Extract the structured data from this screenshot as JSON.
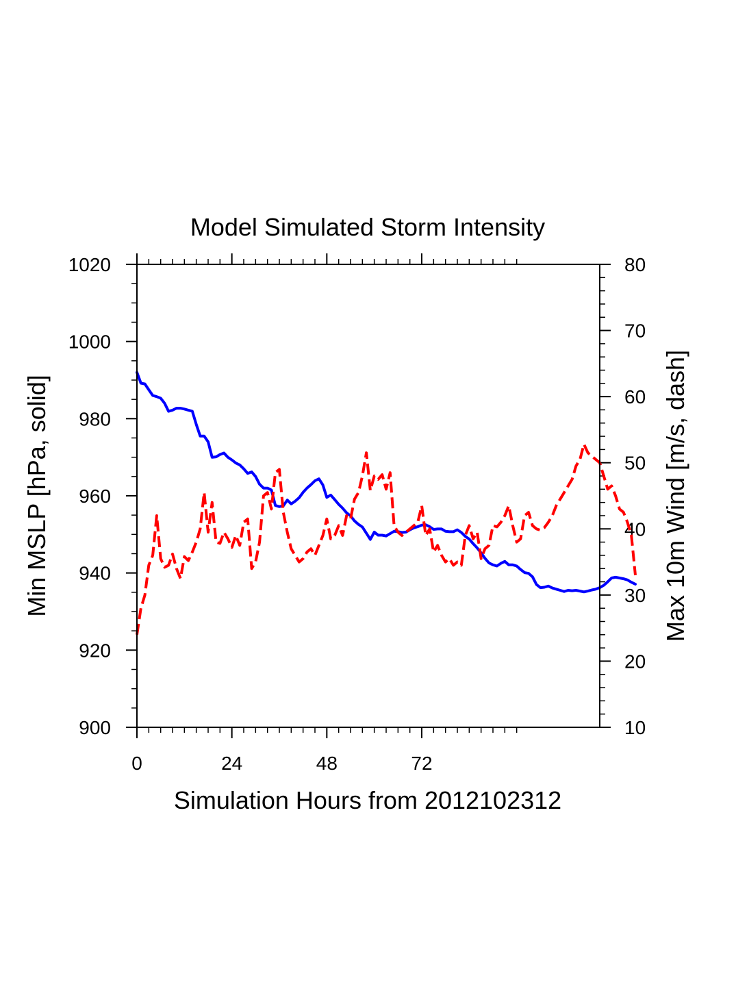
{
  "chart_data": {
    "type": "line",
    "title": "Model Simulated Storm Intensity",
    "xlabel": "Simulation Hours from 2012102312",
    "ylabel_left": "Min MSLP  [hPa, solid]",
    "ylabel_right": "Max 10m Wind  [m/s, dash]",
    "xlim": [
      0,
      117
    ],
    "ylim_left": [
      900,
      1020
    ],
    "ylim_right": [
      10,
      80
    ],
    "x_ticks": [
      0,
      24,
      48,
      72
    ],
    "x_tick_labels": [
      "0",
      "24",
      "48",
      "72"
    ],
    "y_left_ticks": [
      900,
      920,
      940,
      960,
      980,
      1000,
      1020
    ],
    "y_left_tick_labels": [
      "900",
      "920",
      "940",
      "960",
      "980",
      "1000",
      "1020"
    ],
    "y_right_ticks": [
      10,
      20,
      30,
      40,
      50,
      60,
      70,
      80
    ],
    "y_right_tick_labels": [
      "10",
      "20",
      "30",
      "40",
      "50",
      "60",
      "70",
      "80"
    ],
    "series": [
      {
        "name": "Min MSLP",
        "axis": "left",
        "color": "#0000ff",
        "style": "solid",
        "x": [
          0,
          1,
          2,
          3,
          4,
          5,
          6,
          7,
          8,
          9,
          10,
          11,
          12,
          13,
          14,
          15,
          16,
          17,
          18,
          19,
          20,
          21,
          22,
          23,
          24,
          25,
          26,
          27,
          28,
          29,
          30,
          31,
          32,
          33,
          34,
          35,
          36,
          37,
          38,
          39,
          40,
          41,
          42,
          43,
          44,
          45,
          46,
          47,
          48,
          49,
          50,
          51,
          52,
          53,
          54,
          55,
          56,
          57,
          58,
          59,
          60,
          61,
          62,
          63,
          64,
          65,
          66,
          67,
          68,
          69,
          70,
          71,
          72,
          73,
          74,
          75,
          76,
          77,
          78,
          79,
          80,
          81,
          82,
          83,
          84,
          85,
          86,
          87,
          88,
          89,
          90,
          91,
          92,
          93,
          94,
          95,
          96,
          97,
          98,
          99,
          100,
          101,
          102,
          103,
          104,
          105,
          106,
          107,
          108,
          109,
          110,
          111,
          112,
          113,
          114,
          115,
          116,
          117,
          118,
          119,
          120,
          121,
          122,
          123,
          124,
          125,
          126
        ],
        "values": [
          992.0,
          989.2,
          989.0,
          987.5,
          986.0,
          985.7,
          985.3,
          984.0,
          981.9,
          982.2,
          982.7,
          982.7,
          982.5,
          982.2,
          981.9,
          978.5,
          975.5,
          975.5,
          974.0,
          970.0,
          970.1,
          970.7,
          971.1,
          970.0,
          969.3,
          968.5,
          968.0,
          967.0,
          965.8,
          966.2,
          965.0,
          963.0,
          962.0,
          962.0,
          961.5,
          957.5,
          957.2,
          957.4,
          958.9,
          957.9,
          958.6,
          959.5,
          960.9,
          962.0,
          962.9,
          963.9,
          964.4,
          962.8,
          959.6,
          960.2,
          959.0,
          957.8,
          956.8,
          955.6,
          954.8,
          953.5,
          952.6,
          951.9,
          950.3,
          948.7,
          950.6,
          949.8,
          949.8,
          949.6,
          950.2,
          950.8,
          950.7,
          950.5,
          950.6,
          951.2,
          951.7,
          952.0,
          952.4,
          952.5,
          952.0,
          951.3,
          951.4,
          951.4,
          950.8,
          950.7,
          950.7,
          951.2,
          950.5,
          949.5,
          948.8,
          947.6,
          946.5,
          945.2,
          943.8,
          942.6,
          942.1,
          941.8,
          942.5,
          943.0,
          942.1,
          942.1,
          941.8,
          940.9,
          940.1,
          939.9,
          939.0,
          937.0,
          936.2,
          936.3,
          936.6,
          936.1,
          935.8,
          935.5,
          935.2,
          935.5,
          935.4,
          935.5,
          935.3,
          935.1,
          935.3,
          935.6,
          935.8,
          936.2,
          936.8,
          937.7,
          938.7,
          938.9,
          938.7,
          938.5,
          938.2,
          937.6,
          937.1
        ]
      },
      {
        "name": "Max 10m Wind",
        "axis": "right",
        "color": "#ff0000",
        "style": "dashed",
        "x": [
          0,
          1,
          2,
          3,
          4,
          5,
          6,
          7,
          8,
          9,
          10,
          11,
          12,
          13,
          14,
          15,
          16,
          17,
          18,
          19,
          20,
          21,
          22,
          23,
          24,
          25,
          26,
          27,
          28,
          29,
          30,
          31,
          32,
          33,
          34,
          35,
          36,
          37,
          38,
          39,
          40,
          41,
          42,
          43,
          44,
          45,
          46,
          47,
          48,
          49,
          50,
          51,
          52,
          53,
          54,
          55,
          56,
          57,
          58,
          59,
          60,
          61,
          62,
          63,
          64,
          65,
          66,
          67,
          68,
          69,
          70,
          71,
          72,
          73,
          74,
          75,
          76,
          77,
          78,
          79,
          80,
          81,
          82,
          83,
          84,
          85,
          86,
          87,
          88,
          89,
          90,
          91,
          92,
          93,
          94,
          95,
          96,
          97,
          98,
          99,
          100,
          101,
          102,
          103,
          104,
          105,
          106,
          107,
          108,
          109,
          110,
          111,
          112,
          113,
          114,
          115,
          116,
          117,
          118,
          119,
          120,
          121,
          122,
          123,
          124,
          125,
          126
        ],
        "values": [
          24.0,
          28.0,
          30.0,
          34.5,
          36.0,
          42.0,
          35.5,
          34.2,
          34.5,
          36.2,
          34.0,
          32.5,
          35.8,
          35.2,
          36.5,
          38.0,
          40.0,
          45.5,
          39.5,
          44.0,
          38.0,
          37.8,
          39.5,
          38.5,
          37.2,
          39.0,
          37.5,
          41.0,
          41.5,
          34.0,
          35.0,
          38.0,
          45.0,
          45.5,
          43.0,
          48.5,
          49.0,
          42.5,
          39.5,
          37.0,
          36.0,
          35.0,
          35.5,
          36.5,
          37.0,
          36.0,
          37.5,
          39.0,
          41.5,
          38.5,
          39.0,
          40.5,
          39.0,
          42.0,
          41.5,
          44.5,
          45.5,
          48.0,
          51.5,
          45.8,
          48.0,
          47.5,
          48.2,
          46.0,
          48.5,
          40.5,
          39.5,
          39.0,
          39.5,
          40.0,
          40.5,
          41.0,
          43.5,
          39.0,
          40.0,
          36.5,
          37.5,
          36.0,
          35.0,
          35.5,
          34.5,
          35.0,
          34.5,
          39.0,
          40.5,
          38.5,
          39.5,
          35.5,
          37.0,
          37.5,
          40.5,
          40.3,
          41.0,
          42.0,
          43.5,
          40.5,
          38.0,
          38.5,
          42.0,
          42.5,
          40.5,
          40.0,
          39.8,
          40.2,
          41.0,
          42.0,
          43.5,
          44.5,
          45.5,
          46.5,
          47.5,
          49.5,
          50.5,
          52.8,
          51.5,
          51.0,
          50.5,
          50.0,
          48.0,
          46.0,
          46.5,
          45.0,
          43.0,
          42.5,
          41.0,
          39.0,
          33.0
        ]
      }
    ]
  }
}
